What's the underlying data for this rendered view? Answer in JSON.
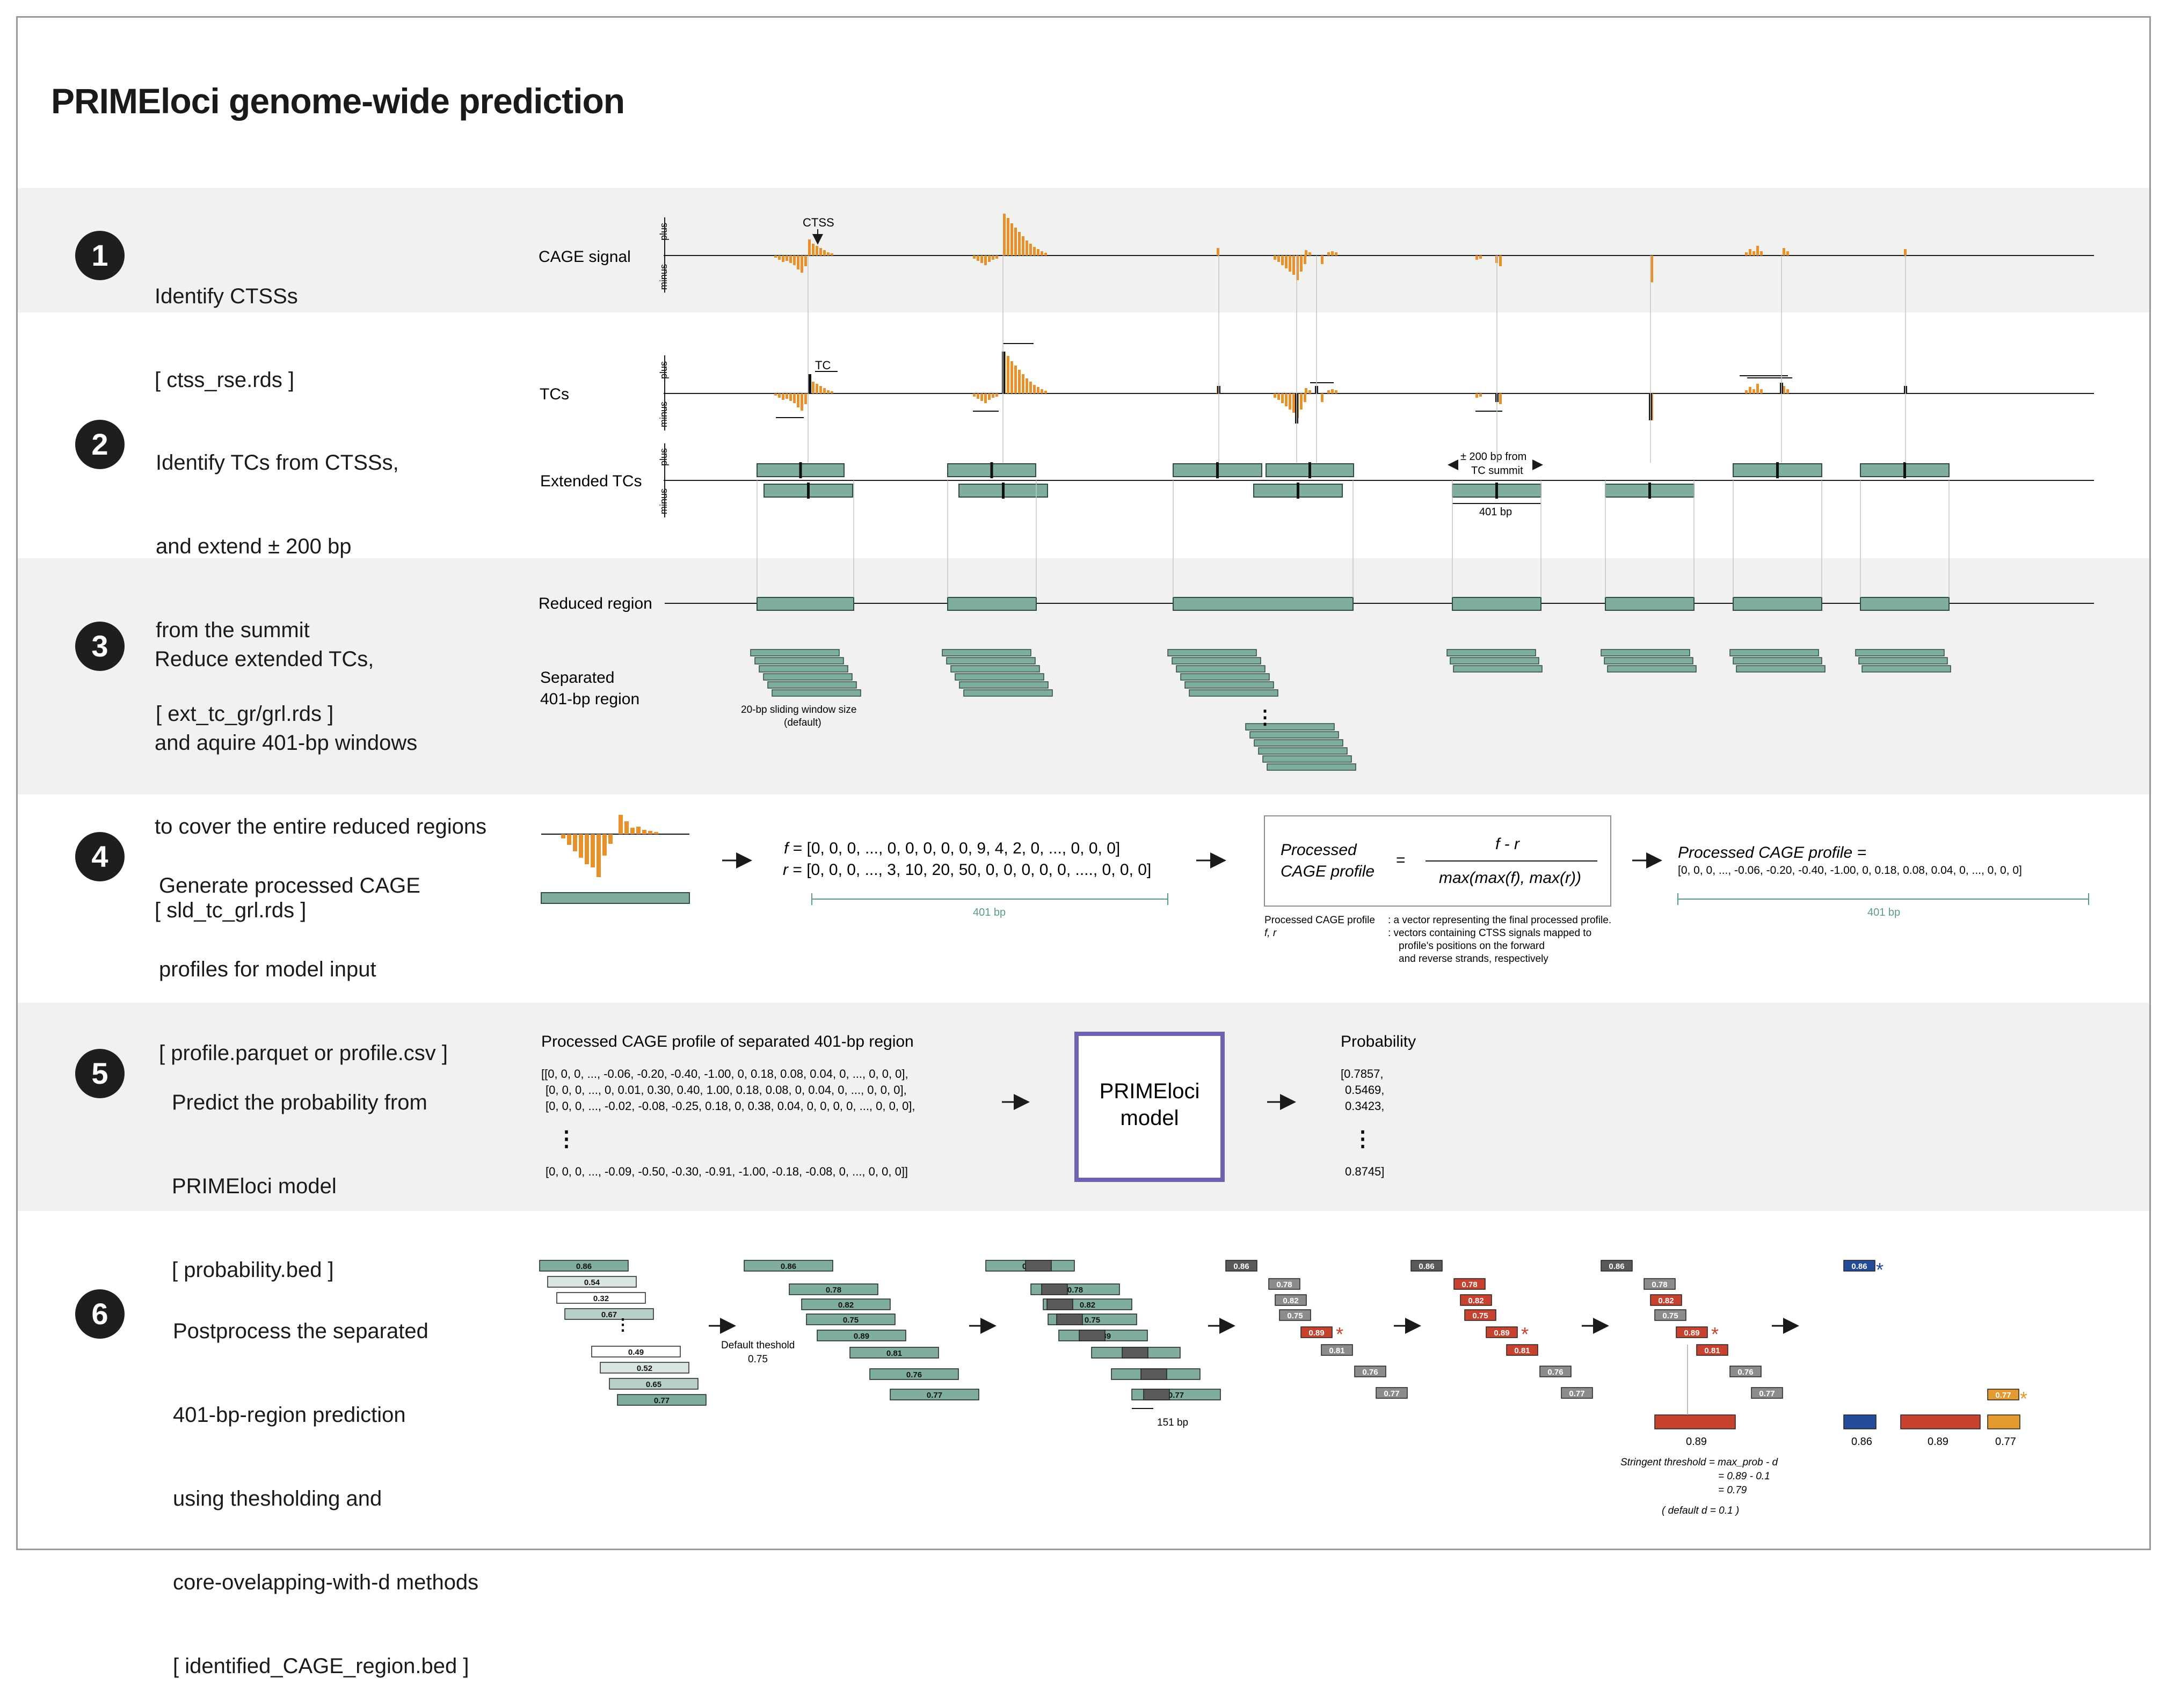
{
  "title": "PRIMEloci genome-wide prediction",
  "colors": {
    "signal": "#e8902a",
    "region": "#7fae9c",
    "region_stroke": "#2e4d40",
    "model_box": "#6f62b0",
    "red": "#c8432f",
    "blue": "#234b9a",
    "orange": "#e39a2f",
    "grey_dark": "#595959",
    "grey_mid": "#8c8c8c",
    "grey_light": "#bdbdbd"
  },
  "steps": [
    {
      "number": "1",
      "lines": [
        "Identify CTSSs",
        "[ ctss_rse.rds ]"
      ]
    },
    {
      "number": "2",
      "lines": [
        "Identify TCs from CTSSs,",
        "and extend ± 200 bp",
        "from the summit",
        "[ ext_tc_gr/grl.rds ]"
      ]
    },
    {
      "number": "3",
      "lines": [
        "Reduce extended TCs,",
        "and aquire 401-bp windows",
        "to cover the entire reduced regions",
        "[ sld_tc_grl.rds ]"
      ]
    },
    {
      "number": "4",
      "lines": [
        "Generate processed CAGE",
        "profiles for model input",
        "[ profile.parquet or profile.csv ]"
      ]
    },
    {
      "number": "5",
      "lines": [
        "Predict the probability from",
        "PRIMEloci model",
        "[ probability.bed ]"
      ]
    },
    {
      "number": "6",
      "lines": [
        "Postprocess the separated",
        "401-bp-region prediction",
        "using thesholding and",
        "core-ovelapping-with-d methods",
        "[ identified_CAGE_region.bed ]"
      ]
    }
  ],
  "track_labels": {
    "cage_signal": "CAGE signal",
    "tcs": "TCs",
    "extended_tcs": "Extended TCs",
    "reduced_region": "Reduced region",
    "separated_line1": "Separated",
    "separated_line2": "401-bp region",
    "plus": "plus",
    "minus": "minus"
  },
  "annotations": {
    "ctss": "CTSS",
    "tc": "TC",
    "pm200_line1": "± 200 bp from",
    "pm200_line2": "TC summit",
    "bp401": "401 bp",
    "sliding_line1": "20-bp sliding window size",
    "sliding_line2": "(default)",
    "bp151": "151 bp",
    "default_threshold_line1": "Default theshold",
    "default_threshold_line2": "0.75",
    "stringent_line1": "Stringent threshold = max_prob - d",
    "stringent_line2": "= 0.89 - 0.1",
    "stringent_line3": "= 0.79",
    "default_d": "( default d = 0.1 )",
    "vertical_dots": "⋮",
    "arrow": "→"
  },
  "step4": {
    "f_label": "f",
    "f_values": "= [0, 0, 0, ..., 0,   0,   0,   0, 0, 9, 4, 2, 0,  ..., 0, 0, 0]",
    "r_label": "r",
    "r_values": "= [0, 0, 0, ..., 3, 10, 20, 50, 0, 0, 0, 0, 0, ...., 0, 0, 0]",
    "bp401": "401 bp",
    "formula_lhs_line1": "Processed",
    "formula_lhs_line2": "CAGE profile",
    "equals": "=",
    "numerator": "f - r",
    "denominator": "max(max(f), max(r))",
    "legend_term1": "Processed CAGE profile",
    "legend_desc1": ":  a vector representing the final processed profile.",
    "legend_term2": "f, r",
    "legend_desc2a": ":  vectors containing CTSS signals mapped to",
    "legend_desc2b": "profile's positions on the forward",
    "legend_desc2c": "and reverse strands, respectively",
    "result_label": "Processed CAGE profile =",
    "result_values": "[0, 0, 0, ..., -0.06, -0.20, -0.40, -1.00, 0, 0.18, 0.08, 0.04, 0,  ..., 0, 0, 0]"
  },
  "step5": {
    "input_title": "Processed CAGE profile of separated 401-bp region",
    "rows": [
      "[[0, 0, 0, ..., -0.06, -0.20, -0.40, -1.00, 0, 0.18, 0.08, 0.04, 0,  ..., 0, 0, 0],",
      "[0, 0, 0, ..., 0, 0.01, 0.30, 0.40, 1.00, 0.18, 0.08, 0, 0.04, 0,  ..., 0, 0, 0],",
      "[0, 0, 0, ..., -0.02, -0.08, -0.25, 0.18, 0, 0.38, 0.04, 0, 0, 0, 0,  ..., 0, 0, 0],",
      "[0, 0, 0, ..., -0.09, -0.50, -0.30, -0.91, -1.00, -0.18, -0.08, 0,  ..., 0, 0, 0]]"
    ],
    "model_line1": "PRIMEloci",
    "model_line2": "model",
    "prob_title": "Probability",
    "probs": [
      "[0.7857,",
      "0.5469,",
      "0.3423,",
      "0.8745]"
    ]
  },
  "step6": {
    "window_scores": [
      "0.86",
      "0.54",
      "0.32",
      "0.67",
      "0.49",
      "0.52",
      "0.65",
      "0.77"
    ],
    "kept_scores": [
      "0.86",
      "0.78",
      "0.82",
      "0.75",
      "0.89",
      "0.81",
      "0.76",
      "0.77"
    ],
    "final_scores": [
      "0.86",
      "0.89",
      "0.77"
    ]
  }
}
